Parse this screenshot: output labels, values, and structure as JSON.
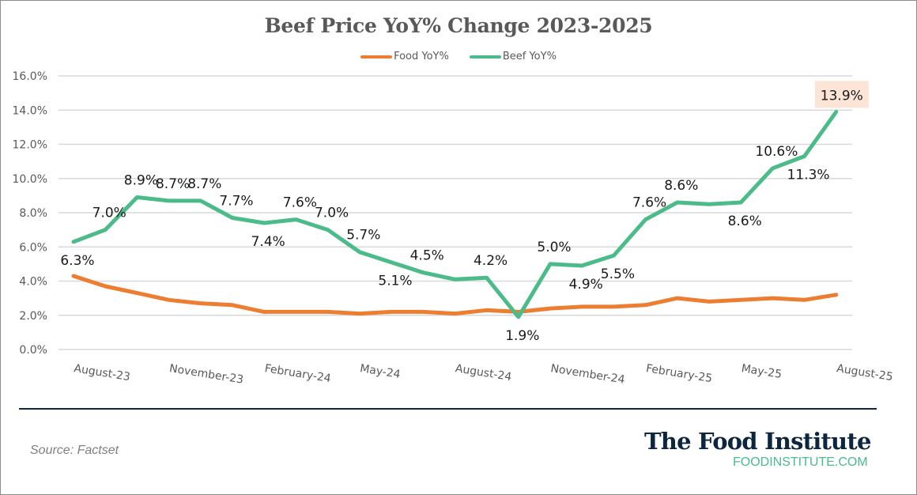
{
  "chart_data": {
    "type": "line",
    "title": "Beef Price YoY% Change 2023-2025",
    "xlabel": "",
    "ylabel": "",
    "ylim": [
      0,
      16
    ],
    "yticks": [
      "0.0%",
      "2.0%",
      "4.0%",
      "6.0%",
      "8.0%",
      "10.0%",
      "12.0%",
      "14.0%",
      "16.0%"
    ],
    "ytick_values": [
      0,
      2,
      4,
      6,
      8,
      10,
      12,
      14,
      16
    ],
    "grid": true,
    "legend_position": "top-center",
    "categories": [
      "Aug-23",
      "Sep-23",
      "Oct-23",
      "Nov-23",
      "Dec-23",
      "Jan-24",
      "Feb-24",
      "Mar-24",
      "Apr-24",
      "May-24",
      "Jun-24",
      "Jul-24",
      "Aug-24",
      "Sep-24",
      "Oct-24",
      "Nov-24",
      "Dec-24",
      "Jan-25",
      "Feb-25",
      "Mar-25",
      "Apr-25",
      "May-25",
      "Jun-25",
      "Jul-25",
      "Aug-25"
    ],
    "xtick_labels": [
      {
        "index": 0,
        "label": "August-23"
      },
      {
        "index": 3,
        "label": "November-23"
      },
      {
        "index": 6,
        "label": "February-24"
      },
      {
        "index": 9,
        "label": "May-24"
      },
      {
        "index": 12,
        "label": "August-24"
      },
      {
        "index": 15,
        "label": "November-24"
      },
      {
        "index": 18,
        "label": "February-25"
      },
      {
        "index": 21,
        "label": "May-25"
      },
      {
        "index": 24,
        "label": "August-25"
      }
    ],
    "series": [
      {
        "name": "Food YoY%",
        "color": "#ED7D31",
        "values": [
          4.3,
          3.7,
          3.3,
          2.9,
          2.7,
          2.6,
          2.2,
          2.2,
          2.2,
          2.1,
          2.2,
          2.2,
          2.1,
          2.3,
          2.2,
          2.4,
          2.5,
          2.5,
          2.6,
          3.0,
          2.8,
          2.9,
          3.0,
          2.9,
          3.2
        ]
      },
      {
        "name": "Beef YoY%",
        "color": "#4CBB8A",
        "values": [
          6.3,
          7.0,
          8.9,
          8.7,
          8.7,
          7.7,
          7.4,
          7.6,
          7.0,
          5.7,
          5.1,
          4.5,
          4.1,
          4.2,
          1.9,
          5.0,
          4.9,
          5.5,
          7.6,
          8.6,
          8.5,
          8.6,
          10.6,
          11.3,
          13.9
        ]
      }
    ],
    "data_labels": [
      {
        "series": 1,
        "index": 0,
        "text": "6.3%",
        "pos": "below"
      },
      {
        "series": 1,
        "index": 1,
        "text": "7.0%",
        "pos": "above"
      },
      {
        "series": 1,
        "index": 2,
        "text": "8.9%",
        "pos": "above"
      },
      {
        "series": 1,
        "index": 3,
        "text": "8.7%",
        "pos": "above"
      },
      {
        "series": 1,
        "index": 4,
        "text": "8.7%",
        "pos": "above"
      },
      {
        "series": 1,
        "index": 5,
        "text": "7.7%",
        "pos": "above"
      },
      {
        "series": 1,
        "index": 6,
        "text": "7.4%",
        "pos": "below"
      },
      {
        "series": 1,
        "index": 7,
        "text": "7.6%",
        "pos": "above"
      },
      {
        "series": 1,
        "index": 8,
        "text": "7.0%",
        "pos": "above"
      },
      {
        "series": 1,
        "index": 9,
        "text": "5.7%",
        "pos": "above"
      },
      {
        "series": 1,
        "index": 10,
        "text": "5.1%",
        "pos": "below"
      },
      {
        "series": 1,
        "index": 11,
        "text": "4.5%",
        "pos": "above"
      },
      {
        "series": 1,
        "index": 13,
        "text": "4.2%",
        "pos": "above"
      },
      {
        "series": 1,
        "index": 14,
        "text": "1.9%",
        "pos": "below"
      },
      {
        "series": 1,
        "index": 15,
        "text": "5.0%",
        "pos": "above"
      },
      {
        "series": 1,
        "index": 16,
        "text": "4.9%",
        "pos": "below"
      },
      {
        "series": 1,
        "index": 17,
        "text": "5.5%",
        "pos": "below"
      },
      {
        "series": 1,
        "index": 18,
        "text": "7.6%",
        "pos": "above"
      },
      {
        "series": 1,
        "index": 19,
        "text": "8.6%",
        "pos": "above"
      },
      {
        "series": 1,
        "index": 21,
        "text": "8.6%",
        "pos": "below"
      },
      {
        "series": 1,
        "index": 22,
        "text": "10.6%",
        "pos": "above"
      },
      {
        "series": 1,
        "index": 23,
        "text": "11.3%",
        "pos": "below"
      },
      {
        "series": 1,
        "index": 24,
        "text": "13.9%",
        "pos": "above",
        "highlight": "#FCE4D6"
      }
    ]
  },
  "legend": {
    "food_label": "Food YoY%",
    "beef_label": "Beef YoY%"
  },
  "footer": {
    "source": "Source: Factset",
    "brand_name": "The Food Institute",
    "brand_url": "FOODINSTITUTE.COM"
  },
  "colors": {
    "food": "#ED7D31",
    "beef": "#4CBB8A",
    "navy": "#0D2640",
    "highlight": "#FCE4D6"
  }
}
